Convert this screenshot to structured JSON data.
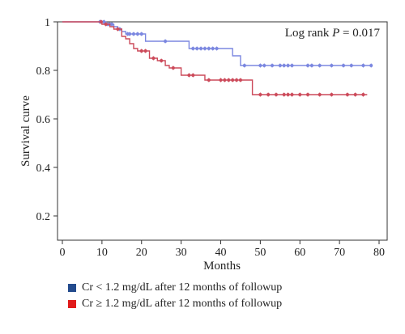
{
  "chart_data": {
    "type": "line",
    "subtype": "kaplan-meier-step",
    "annotation": {
      "prefix": "Log rank ",
      "variable": "P",
      "suffix": " = 0.017"
    },
    "xlabel": "Months",
    "ylabel": "Survival curve",
    "xlim": [
      0,
      80
    ],
    "ylim": [
      0.1,
      1.0
    ],
    "xticks": [
      0,
      10,
      20,
      30,
      40,
      50,
      60,
      70,
      80
    ],
    "xtick_labels": [
      "0",
      "10",
      "20",
      "30",
      "40",
      "50",
      "60",
      "70",
      "80"
    ],
    "yticks": [
      0.2,
      0.4,
      0.6,
      0.8,
      1.0
    ],
    "ytick_labels": [
      "0.2",
      "0.4",
      "0.6",
      "0.8",
      "1"
    ],
    "grid": false,
    "legend_position": "bottom-left",
    "series": [
      {
        "name": "Cr < 1.2 mg/dL after 12 months of followup",
        "color": "#2f4f9a",
        "line_color": "#7b87e0",
        "steps": [
          [
            0,
            1.0
          ],
          [
            11,
            0.99
          ],
          [
            13,
            0.98
          ],
          [
            14,
            0.97
          ],
          [
            15,
            0.96
          ],
          [
            16,
            0.95
          ],
          [
            21,
            0.92
          ],
          [
            32,
            0.89
          ],
          [
            43,
            0.86
          ],
          [
            45,
            0.82
          ],
          [
            78,
            0.82
          ]
        ],
        "censored": [
          [
            9.5,
            1.0
          ],
          [
            10.5,
            1.0
          ],
          [
            11.5,
            0.99
          ],
          [
            12,
            0.99
          ],
          [
            12.5,
            0.99
          ],
          [
            14.5,
            0.97
          ],
          [
            16.5,
            0.95
          ],
          [
            17,
            0.95
          ],
          [
            18,
            0.95
          ],
          [
            19,
            0.95
          ],
          [
            20,
            0.95
          ],
          [
            26,
            0.92
          ],
          [
            33,
            0.89
          ],
          [
            34,
            0.89
          ],
          [
            35,
            0.89
          ],
          [
            36,
            0.89
          ],
          [
            37,
            0.89
          ],
          [
            38,
            0.89
          ],
          [
            39,
            0.89
          ],
          [
            46,
            0.82
          ],
          [
            50,
            0.82
          ],
          [
            51,
            0.82
          ],
          [
            53,
            0.82
          ],
          [
            55,
            0.82
          ],
          [
            56,
            0.82
          ],
          [
            57,
            0.82
          ],
          [
            58,
            0.82
          ],
          [
            62,
            0.82
          ],
          [
            63,
            0.82
          ],
          [
            65,
            0.82
          ],
          [
            68,
            0.82
          ],
          [
            71,
            0.82
          ],
          [
            73,
            0.82
          ],
          [
            76,
            0.82
          ],
          [
            78,
            0.82
          ]
        ]
      },
      {
        "name": "Cr ≥ 1.2 mg/dL after 12 months of followup",
        "color": "#cc2222",
        "line_color": "#cc4a5a",
        "steps": [
          [
            0,
            1.0
          ],
          [
            10,
            0.99
          ],
          [
            12,
            0.98
          ],
          [
            13,
            0.97
          ],
          [
            15,
            0.94
          ],
          [
            16,
            0.93
          ],
          [
            17,
            0.91
          ],
          [
            18,
            0.89
          ],
          [
            19,
            0.88
          ],
          [
            22,
            0.85
          ],
          [
            24,
            0.84
          ],
          [
            26,
            0.82
          ],
          [
            27,
            0.81
          ],
          [
            30,
            0.78
          ],
          [
            36,
            0.76
          ],
          [
            48,
            0.7
          ],
          [
            77,
            0.7
          ]
        ],
        "censored": [
          [
            9.8,
            1.0
          ],
          [
            11,
            0.99
          ],
          [
            14,
            0.97
          ],
          [
            20,
            0.88
          ],
          [
            21,
            0.88
          ],
          [
            23,
            0.85
          ],
          [
            25,
            0.84
          ],
          [
            28,
            0.81
          ],
          [
            32,
            0.78
          ],
          [
            33,
            0.78
          ],
          [
            37,
            0.76
          ],
          [
            40,
            0.76
          ],
          [
            41,
            0.76
          ],
          [
            42,
            0.76
          ],
          [
            43,
            0.76
          ],
          [
            44,
            0.76
          ],
          [
            45,
            0.76
          ],
          [
            50,
            0.7
          ],
          [
            52,
            0.7
          ],
          [
            54,
            0.7
          ],
          [
            56,
            0.7
          ],
          [
            57,
            0.7
          ],
          [
            58,
            0.7
          ],
          [
            60,
            0.7
          ],
          [
            62,
            0.7
          ],
          [
            65,
            0.7
          ],
          [
            68,
            0.7
          ],
          [
            72,
            0.7
          ],
          [
            74,
            0.7
          ],
          [
            76,
            0.7
          ]
        ]
      }
    ]
  },
  "legend": {
    "blue": {
      "label": "Cr < 1.2 mg/dL after 12 months of followup",
      "color": "#234b8d"
    },
    "red": {
      "label": "Cr ≥ 1.2 mg/dL after 12 months of followup",
      "color": "#e01b1b"
    }
  }
}
